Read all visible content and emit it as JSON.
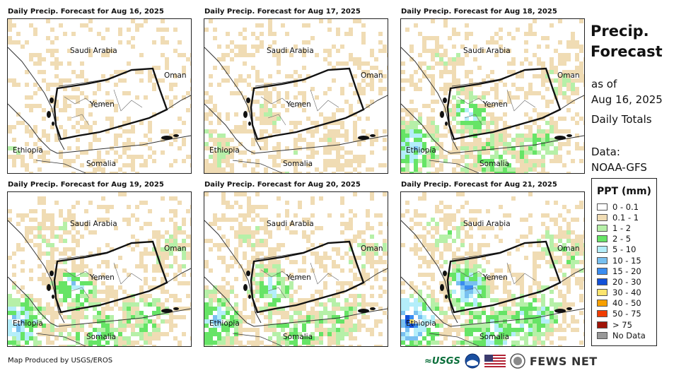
{
  "panels": [
    {
      "title": "Daily Precip. Forecast for Aug 16, 2025",
      "intensity": 0.15
    },
    {
      "title": "Daily Precip. Forecast for Aug 17, 2025",
      "intensity": 0.3
    },
    {
      "title": "Daily Precip. Forecast for Aug 18, 2025",
      "intensity": 0.7
    },
    {
      "title": "Daily Precip. Forecast for Aug 19, 2025",
      "intensity": 0.75
    },
    {
      "title": "Daily Precip. Forecast for Aug 20, 2025",
      "intensity": 0.7
    },
    {
      "title": "Daily Precip. Forecast for Aug 21, 2025",
      "intensity": 1.0
    }
  ],
  "labels": {
    "saudi": "Saudi Arabia",
    "oman": "Oman",
    "yemen": "Yemen",
    "ethiopia": "Ethiopia",
    "somalia": "Somalia"
  },
  "sidebar": {
    "title_line1": "Precip.",
    "title_line2": "Forecast",
    "asof_line1": "as of",
    "asof_line2": "Aug 16, 2025",
    "totals": "Daily Totals",
    "data_line1": "Data:",
    "data_line2": "NOAA-GFS"
  },
  "legend": {
    "title": "PPT (mm)",
    "items": [
      {
        "label": "0 - 0.1",
        "color": "#ffffff"
      },
      {
        "label": "0.1 - 1",
        "color": "#f0dcb4"
      },
      {
        "label": "1 - 2",
        "color": "#b6f0a8"
      },
      {
        "label": "2 - 5",
        "color": "#66e466"
      },
      {
        "label": "5 - 10",
        "color": "#b4eefa"
      },
      {
        "label": "10 - 15",
        "color": "#78c0f0"
      },
      {
        "label": "15 - 20",
        "color": "#3a8cf0"
      },
      {
        "label": "20 - 30",
        "color": "#1250d8"
      },
      {
        "label": "30 - 40",
        "color": "#fce46e"
      },
      {
        "label": "40 - 50",
        "color": "#f8a000"
      },
      {
        "label": "50 - 75",
        "color": "#f03c00"
      },
      {
        "label": "> 75",
        "color": "#a01408"
      },
      {
        "label": "No Data",
        "color": "#999999"
      }
    ]
  },
  "footer": {
    "credit": "Map Produced by USGS/EROS",
    "usgs": "≈USGS",
    "fews": "FEWS NET"
  }
}
